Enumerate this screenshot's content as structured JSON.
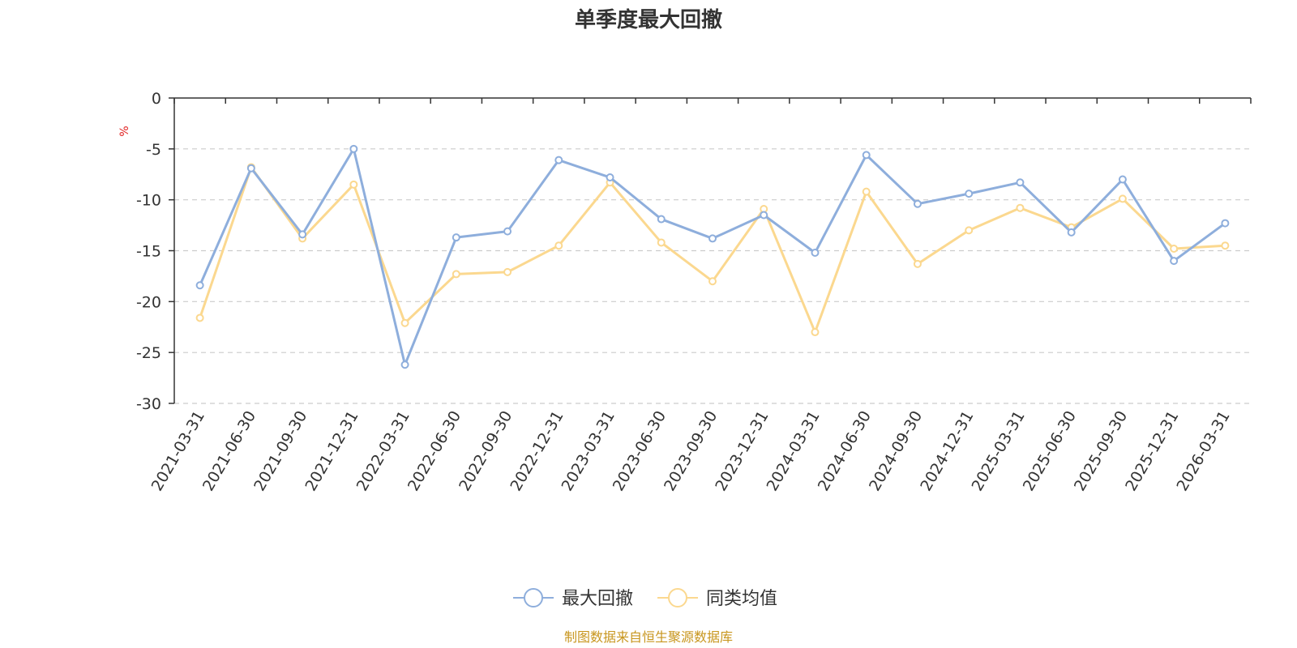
{
  "chart_data": {
    "type": "line",
    "title": "单季度最大回撤",
    "ylabel": "%",
    "ylim": [
      -30,
      0
    ],
    "yticks": [
      0,
      -5,
      -10,
      -15,
      -20,
      -25,
      -30
    ],
    "grid": true,
    "legend_position": "bottom",
    "categories": [
      "2021-03-31",
      "2021-06-30",
      "2021-09-30",
      "2021-12-31",
      "2022-03-31",
      "2022-06-30",
      "2022-09-30",
      "2022-12-31",
      "2023-03-31",
      "2023-06-30",
      "2023-09-30",
      "2023-12-31",
      "2024-03-31",
      "2024-06-30",
      "2024-09-30",
      "2024-12-31",
      "2025-03-31",
      "2025-06-30",
      "2025-09-30",
      "2025-12-31",
      "2026-03-31"
    ],
    "series": [
      {
        "name": "最大回撤",
        "color": "#8eaedc",
        "values": [
          -18.4,
          -6.9,
          -13.4,
          -5.0,
          -26.2,
          -13.7,
          -13.1,
          -6.1,
          -7.8,
          -11.9,
          -13.8,
          -11.5,
          -15.2,
          -5.6,
          -10.4,
          -9.4,
          -8.3,
          -13.2,
          -8.0,
          -16.0,
          -12.3
        ]
      },
      {
        "name": "同类均值",
        "color": "#fbd88f",
        "values": [
          -21.6,
          -6.8,
          -13.8,
          -8.5,
          -22.1,
          -17.3,
          -17.1,
          -14.5,
          -8.3,
          -14.2,
          -18.0,
          -10.9,
          -23.0,
          -9.2,
          -16.3,
          -13.0,
          -10.8,
          -12.7,
          -9.9,
          -14.8,
          -14.5
        ]
      }
    ],
    "source": "制图数据来自恒生聚源数据库"
  }
}
